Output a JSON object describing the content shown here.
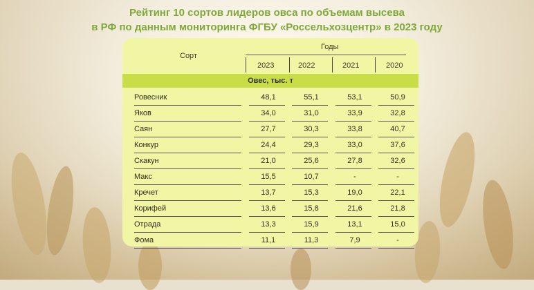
{
  "title_line1": "Рейтинг 10 сортов лидеров овса по объемам высева",
  "title_line2": "в РФ по данным мониторинга ФГБУ «Россельхозцентр» в 2023 году",
  "table": {
    "col_sort": "Сорт",
    "col_years": "Годы",
    "years": [
      "2023",
      "2022",
      "2021",
      "2020"
    ],
    "section_label": "Овес, тыс. т",
    "rows": [
      {
        "name": "Ровесник",
        "values": [
          "48,1",
          "55,1",
          "53,1",
          "50,9"
        ]
      },
      {
        "name": "Яков",
        "values": [
          "34,0",
          "31,0",
          "33,9",
          "32,8"
        ]
      },
      {
        "name": "Саян",
        "values": [
          "27,7",
          "30,3",
          "33,8",
          "40,7"
        ]
      },
      {
        "name": "Конкур",
        "values": [
          "24,4",
          "29,3",
          "33,0",
          "37,6"
        ]
      },
      {
        "name": "Скакун",
        "values": [
          "21,0",
          "25,6",
          "27,8",
          "32,6"
        ]
      },
      {
        "name": "Макс",
        "values": [
          "15,5",
          "10,7",
          "-",
          "-"
        ]
      },
      {
        "name": "Кречет",
        "values": [
          "13,7",
          "15,3",
          "19,0",
          "22,1"
        ]
      },
      {
        "name": "Корифей",
        "values": [
          "13,6",
          "15,8",
          "21,6",
          "21,8"
        ]
      },
      {
        "name": "Отрада",
        "values": [
          "13,3",
          "15,9",
          "13,1",
          "15,0"
        ]
      },
      {
        "name": "Фома",
        "values": [
          "11,1",
          "11,3",
          "7,9",
          "-"
        ]
      }
    ]
  }
}
